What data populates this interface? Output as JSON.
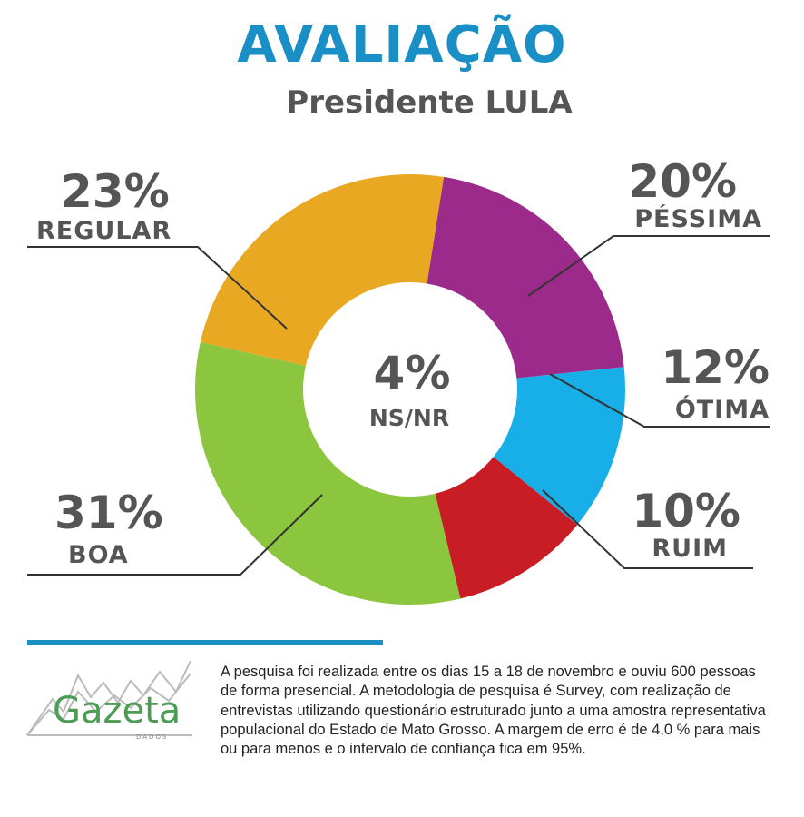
{
  "header": {
    "title": "AVALIAÇÃO",
    "subtitle": "Presidente LULA"
  },
  "chart_data": {
    "type": "pie",
    "donut": true,
    "slices": [
      {
        "label": "PÉSSIMA",
        "value": 20,
        "display": "20%",
        "color": "#9b2a8b"
      },
      {
        "label": "ÓTIMA",
        "value": 12,
        "display": "12%",
        "color": "#18aee8"
      },
      {
        "label": "RUIM",
        "value": 10,
        "display": "10%",
        "color": "#c81d24"
      },
      {
        "label": "BOA",
        "value": 31,
        "display": "31%",
        "color": "#8cc63f"
      },
      {
        "label": "REGULAR",
        "value": 23,
        "display": "23%",
        "color": "#e9a822"
      }
    ],
    "center": {
      "label": "NS/NR",
      "value": 4,
      "display": "4%"
    }
  },
  "footer": {
    "logo_name": "Gazeta",
    "logo_sub": "DADOS",
    "logo_icon": "mountain-line-chart-icon",
    "footnote": "A pesquisa foi realizada entre os dias 15 a 18 de novembro e ouviu 600 pessoas de forma presencial. A metodologia de pesquisa é Survey, com realização de entrevistas utilizando questionário estruturado junto a uma amostra representativa populacional do Estado de Mato Grosso. A margem de erro é de 4,0 % para mais ou para menos e o intervalo de confiança fica em 95%."
  },
  "colors": {
    "title": "#1a8fc6",
    "text": "#555555",
    "rule": "#1a8fc6",
    "logo": "#4a9d52"
  }
}
